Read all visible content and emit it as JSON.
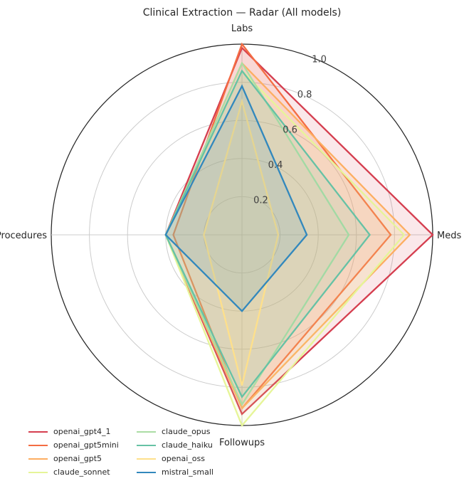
{
  "chart_data": {
    "type": "radar",
    "title": "Clinical Extraction — Radar (All models)",
    "axes": [
      "Labs",
      "Meds",
      "Followups",
      "Procedures"
    ],
    "rlim": [
      0,
      1.0
    ],
    "rticks": [
      0.2,
      0.4,
      0.6,
      0.8,
      1.0
    ],
    "rtick_labels": [
      "0.2",
      "0.4",
      "0.6",
      "0.8",
      "1.0"
    ],
    "grid": true,
    "legend_position": "bottom-left",
    "series": [
      {
        "name": "openai_gpt4_1",
        "color": "#d53e4f",
        "values": [
          0.98,
          1.0,
          0.94,
          0.4
        ]
      },
      {
        "name": "openai_gpt5mini",
        "color": "#f46d43",
        "values": [
          1.0,
          0.78,
          0.91,
          0.36
        ]
      },
      {
        "name": "openai_gpt5",
        "color": "#fdae61",
        "values": [
          0.9,
          0.88,
          0.91,
          0.4
        ]
      },
      {
        "name": "claude_sonnet",
        "color": "#e6f598",
        "values": [
          0.86,
          0.85,
          1.0,
          0.4
        ]
      },
      {
        "name": "claude_opus",
        "color": "#abdda4",
        "values": [
          0.9,
          0.56,
          0.89,
          0.4
        ]
      },
      {
        "name": "claude_haiku",
        "color": "#66c2a5",
        "values": [
          0.86,
          0.67,
          0.85,
          0.4
        ]
      },
      {
        "name": "openai_oss",
        "color": "#fee08b",
        "values": [
          0.7,
          0.19,
          0.79,
          0.2
        ]
      },
      {
        "name": "mistral_small",
        "color": "#3288bd",
        "values": [
          0.78,
          0.34,
          0.4,
          0.4
        ]
      }
    ]
  }
}
